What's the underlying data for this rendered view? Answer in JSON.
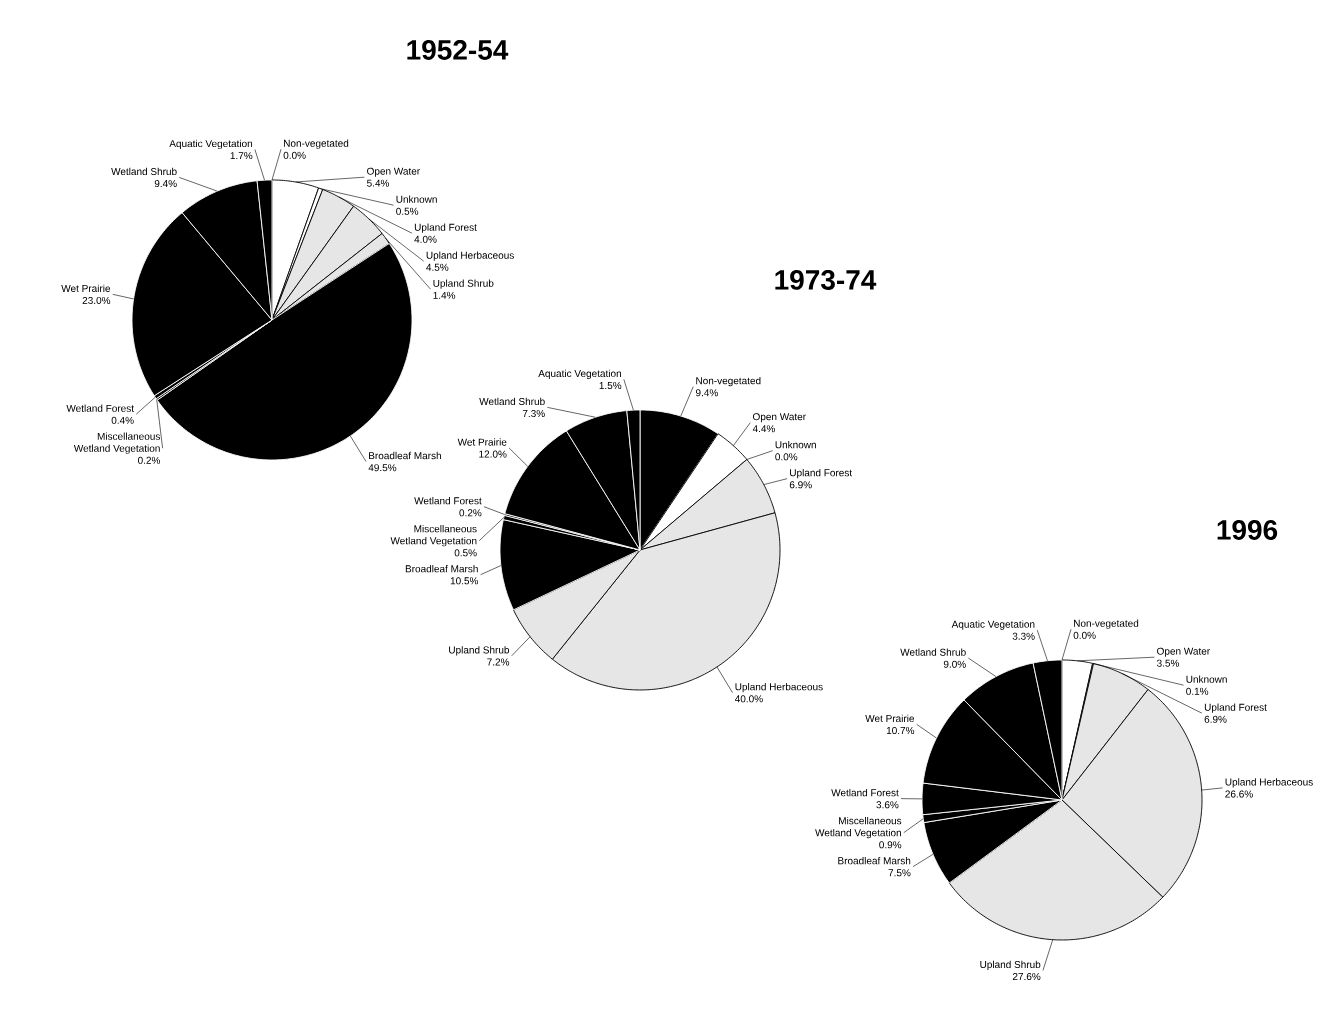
{
  "chart_data": [
    {
      "type": "pie",
      "title": "1952-54",
      "categories": [
        "Non-vegetated",
        "Open Water",
        "Unknown",
        "Upland Forest",
        "Upland Herbaceous",
        "Upland Shrub",
        "Broadleaf Marsh",
        "Miscellaneous Wetland Vegetation",
        "Wetland Forest",
        "Wet Prairie",
        "Wetland Shrub",
        "Aquatic Vegetation"
      ],
      "values": [
        0.0,
        5.4,
        0.5,
        4.0,
        4.5,
        1.4,
        49.5,
        0.2,
        0.4,
        23.0,
        9.4,
        1.7
      ],
      "value_labels": [
        "0.0%",
        "5.4%",
        "0.5%",
        "4.0%",
        "4.5%",
        "1.4%",
        "49.5%",
        "0.2%",
        "0.4%",
        "23.0%",
        "9.4%",
        "1.7%"
      ],
      "colors": [
        "#ffffff",
        "#ffffff",
        "#ffffff",
        "#e6e6e6",
        "#e6e6e6",
        "#e6e6e6",
        "#000000",
        "#000000",
        "#000000",
        "#000000",
        "#000000",
        "#000000"
      ]
    },
    {
      "type": "pie",
      "title": "1973-74",
      "categories": [
        "Non-vegetated",
        "Open Water",
        "Unknown",
        "Upland Forest",
        "Upland Herbaceous",
        "Upland Shrub",
        "Broadleaf Marsh",
        "Miscellaneous Wetland Vegetation",
        "Wetland Forest",
        "Wet Prairie",
        "Wetland Shrub",
        "Aquatic Vegetation"
      ],
      "values": [
        9.4,
        4.4,
        0.0,
        6.9,
        40.0,
        7.2,
        10.5,
        0.5,
        0.2,
        12.0,
        7.3,
        1.5
      ],
      "value_labels": [
        "9.4%",
        "4.4%",
        "0.0%",
        "6.9%",
        "40.0%",
        "7.2%",
        "10.5%",
        "0.5%",
        "0.2%",
        "12.0%",
        "7.3%",
        "1.5%"
      ],
      "colors": [
        "#000000",
        "#ffffff",
        "#ffffff",
        "#e6e6e6",
        "#e6e6e6",
        "#e6e6e6",
        "#000000",
        "#000000",
        "#000000",
        "#000000",
        "#000000",
        "#000000"
      ]
    },
    {
      "type": "pie",
      "title": "1996",
      "categories": [
        "Non-vegetated",
        "Open Water",
        "Unknown",
        "Upland Forest",
        "Upland Herbaceous",
        "Upland Shrub",
        "Broadleaf Marsh",
        "Miscellaneous Wetland Vegetation",
        "Wetland Forest",
        "Wet Prairie",
        "Wetland Shrub",
        "Aquatic Vegetation"
      ],
      "values": [
        0.0,
        3.5,
        0.1,
        6.9,
        26.6,
        27.6,
        7.5,
        0.9,
        3.6,
        10.7,
        9.0,
        3.3
      ],
      "value_labels": [
        "0.0%",
        "3.5%",
        "0.1%",
        "6.9%",
        "26.6%",
        "27.6%",
        "7.5%",
        "0.9%",
        "3.6%",
        "10.7%",
        "9.0%",
        "3.3%"
      ],
      "colors": [
        "#000000",
        "#ffffff",
        "#ffffff",
        "#e6e6e6",
        "#e6e6e6",
        "#e6e6e6",
        "#000000",
        "#000000",
        "#000000",
        "#000000",
        "#000000",
        "#000000"
      ]
    }
  ]
}
